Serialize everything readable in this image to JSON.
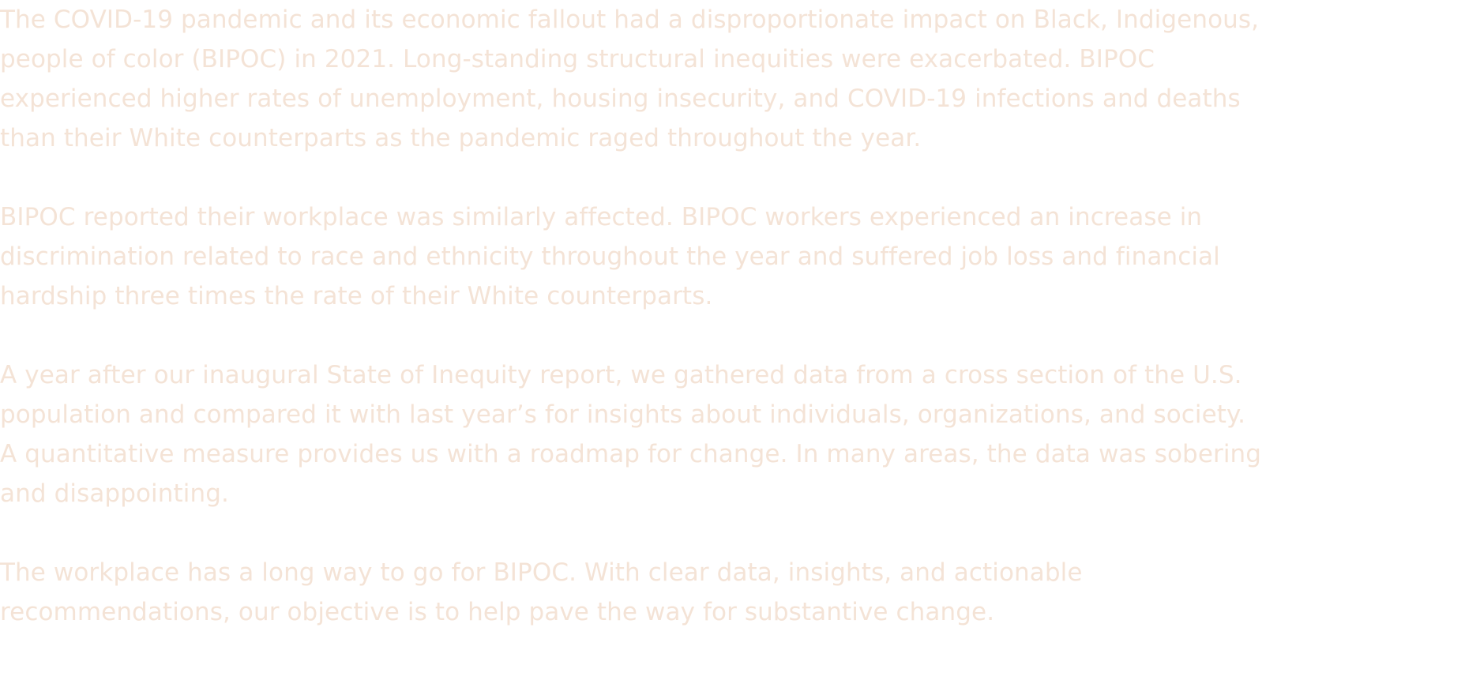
{
  "paragraphs": [
    {
      "lines": [
        "The COVID-19 pandemic and its economic fallout had a disproportionate impact on Black, Indigenous,",
        "people of color (BIPOC) in 2021. Long-standing structural inequities were exacerbated. BIPOC",
        "experienced higher rates of unemployment, housing insecurity, and COVID-19 infections and deaths",
        "than their White counterparts as the pandemic raged throughout the year."
      ]
    },
    {
      "lines": [
        "BIPOC reported their workplace was similarly affected. BIPOC workers experienced an increase in",
        "discrimination related to race and ethnicity throughout the year and suffered job loss and financial",
        "hardship three times the rate of their White counterparts."
      ]
    },
    {
      "lines": [
        "A year after our inaugural State of Inequity report, we gathered data from a cross section of the U.S.",
        "population and compared it with last year’s for insights about individuals, organizations, and society.",
        "A quantitative measure provides us with a roadmap for change. In many areas, the data was sobering",
        "and disappointing."
      ]
    },
    {
      "lines": [
        "The workplace has a long way to go for BIPOC. With clear data, insights, and actionable",
        "recommendations, our objective is to help pave the way for substantive change."
      ]
    }
  ],
  "colors": {
    "text": "#f4e3d6",
    "background": "#ffffff"
  }
}
